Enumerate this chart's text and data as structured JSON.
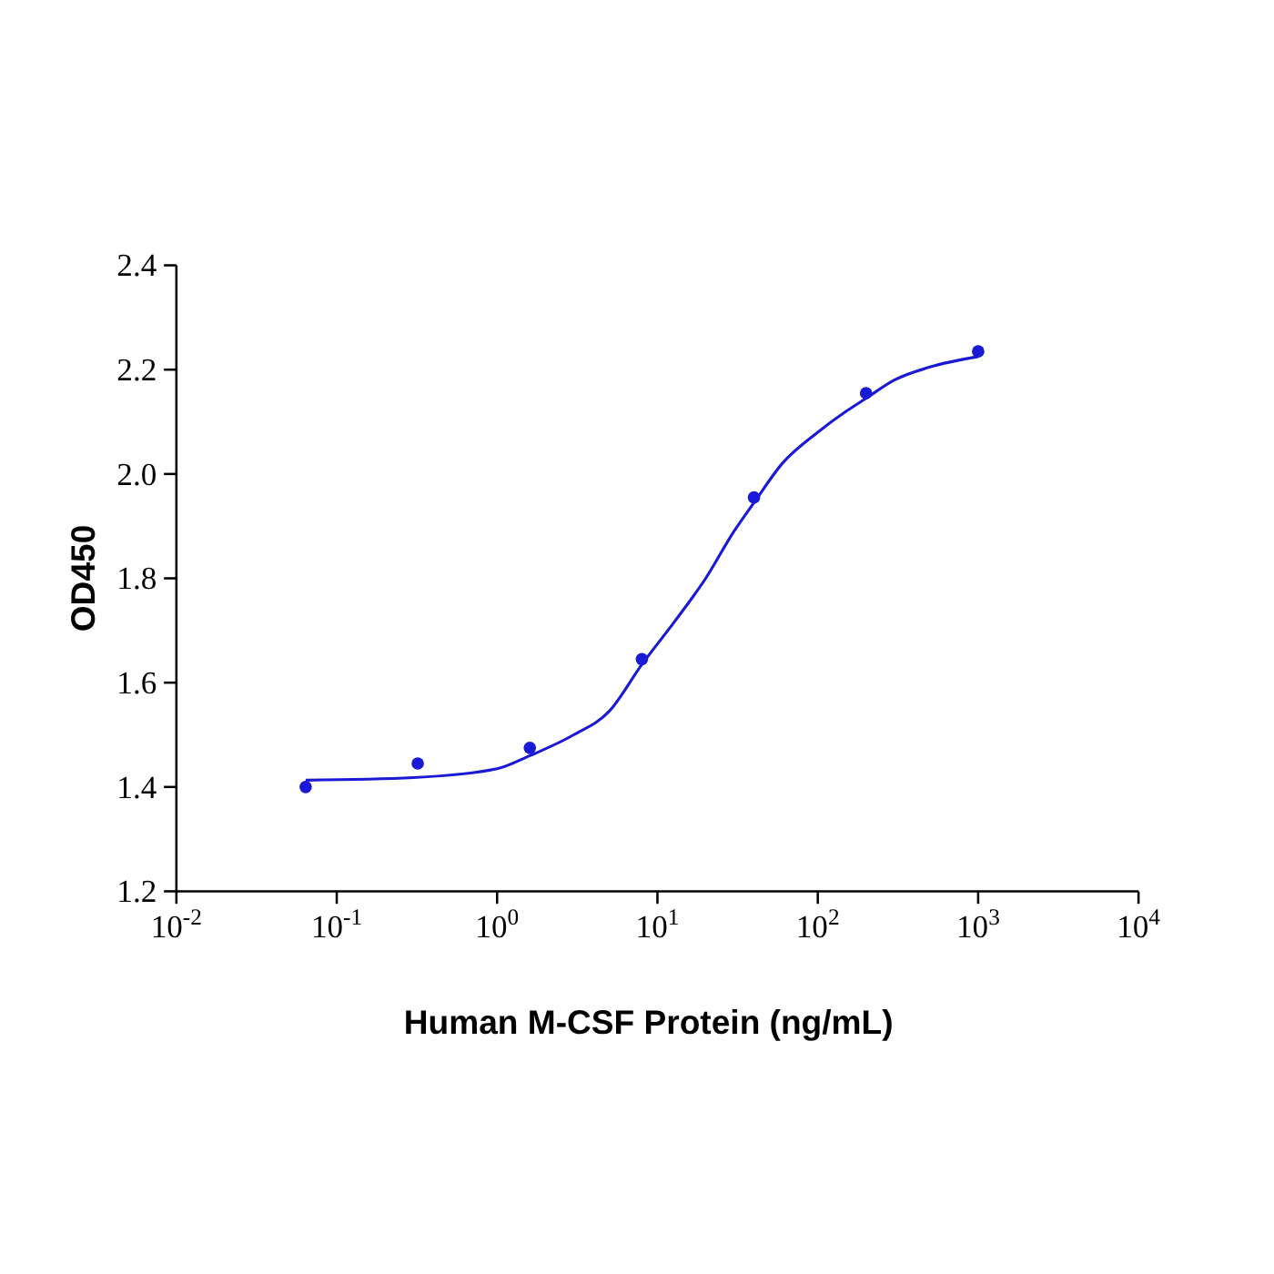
{
  "chart_data": {
    "type": "scatter",
    "xlabel": "Human M-CSF Protein (ng/mL)",
    "ylabel": "OD450",
    "log": "x",
    "xlim": [
      0.01,
      10000
    ],
    "ylim": [
      1.2,
      2.4
    ],
    "xticks": [
      {
        "value": 0.01,
        "label": "10$^{-2}$"
      },
      {
        "value": 0.1,
        "label": "10$^{-1}$"
      },
      {
        "value": 1,
        "label": "10$^{0}$"
      },
      {
        "value": 10,
        "label": "10$^{1}$"
      },
      {
        "value": 100,
        "label": "10$^{2}$"
      },
      {
        "value": 1000,
        "label": "10$^{3}$"
      },
      {
        "value": 10000,
        "label": "10$^{4}$"
      }
    ],
    "yticks": [
      {
        "value": 1.2,
        "label": "1.2"
      },
      {
        "value": 1.4,
        "label": "1.4"
      },
      {
        "value": 1.6,
        "label": "1.6"
      },
      {
        "value": 1.8,
        "label": "1.8"
      },
      {
        "value": 2.0,
        "label": "2.0"
      },
      {
        "value": 2.2,
        "label": "2.2"
      },
      {
        "value": 2.4,
        "label": "2.4"
      }
    ],
    "marker": "circle",
    "grid": false,
    "series": [
      {
        "color": "#1a1ad6",
        "x": [
          0.064,
          0.32,
          1.6,
          8,
          40,
          200,
          1000
        ],
        "values": [
          1.4,
          1.445,
          1.475,
          1.645,
          1.955,
          2.155,
          2.235
        ]
      },
      {
        "type": "line",
        "marker": "none",
        "color": "#1a1ad6",
        "x": [
          0.064,
          0.3,
          1,
          1.6,
          3,
          5,
          8,
          13,
          20,
          30,
          40,
          60,
          100,
          150,
          200,
          300,
          500,
          1000
        ],
        "values": [
          1.413,
          1.418,
          1.435,
          1.46,
          1.5,
          1.545,
          1.635,
          1.72,
          1.8,
          1.89,
          1.945,
          2.02,
          2.08,
          2.12,
          2.145,
          2.18,
          2.205,
          2.225
        ]
      }
    ]
  }
}
